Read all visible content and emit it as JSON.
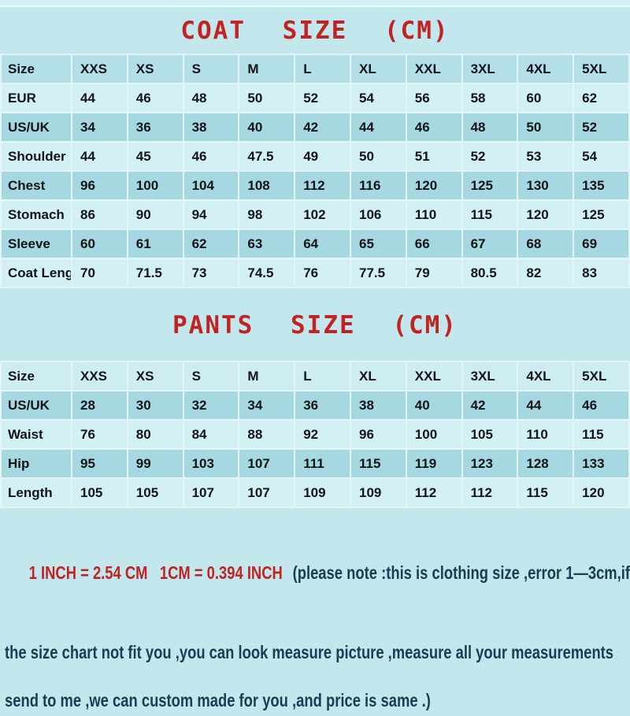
{
  "page": {
    "background_color": "#c2e7ed",
    "title_color": "#c32222",
    "note_color": "#1b3c52",
    "row_light_color": "#d3f0f4",
    "row_dark_color": "#a6d8e1"
  },
  "coat": {
    "title": "COAT SIZE (CM)",
    "columns": [
      "Size",
      "XXS",
      "XS",
      "S",
      "M",
      "L",
      "XL",
      "XXL",
      "3XL",
      "4XL",
      "5XL"
    ],
    "rows": [
      {
        "label": "EUR",
        "values": [
          "44",
          "46",
          "48",
          "50",
          "52",
          "54",
          "56",
          "58",
          "60",
          "62"
        ]
      },
      {
        "label": "US/UK",
        "values": [
          "34",
          "36",
          "38",
          "40",
          "42",
          "44",
          "46",
          "48",
          "50",
          "52"
        ]
      },
      {
        "label": "Shoulder",
        "values": [
          "44",
          "45",
          "46",
          "47.5",
          "49",
          "50",
          "51",
          "52",
          "53",
          "54"
        ]
      },
      {
        "label": "Chest",
        "values": [
          "96",
          "100",
          "104",
          "108",
          "112",
          "116",
          "120",
          "125",
          "130",
          "135"
        ]
      },
      {
        "label": "Stomach",
        "values": [
          "86",
          "90",
          "94",
          "98",
          "102",
          "106",
          "110",
          "115",
          "120",
          "125"
        ]
      },
      {
        "label": "Sleeve",
        "values": [
          "60",
          "61",
          "62",
          "63",
          "64",
          "65",
          "66",
          "67",
          "68",
          "69"
        ]
      },
      {
        "label": "Coat Length",
        "values": [
          "70",
          "71.5",
          "73",
          "74.5",
          "76",
          "77.5",
          "79",
          "80.5",
          "82",
          "83"
        ]
      }
    ]
  },
  "pants": {
    "title": "PANTS SIZE (CM)",
    "columns": [
      "Size",
      "XXS",
      "XS",
      "S",
      "M",
      "L",
      "XL",
      "XXL",
      "3XL",
      "4XL",
      "5XL"
    ],
    "rows": [
      {
        "label": "US/UK",
        "values": [
          "28",
          "30",
          "32",
          "34",
          "36",
          "38",
          "40",
          "42",
          "44",
          "46"
        ]
      },
      {
        "label": "Waist",
        "values": [
          "76",
          "80",
          "84",
          "88",
          "92",
          "96",
          "100",
          "105",
          "110",
          "115"
        ]
      },
      {
        "label": "Hip",
        "values": [
          "95",
          "99",
          "103",
          "107",
          "111",
          "115",
          "119",
          "123",
          "128",
          "133"
        ]
      },
      {
        "label": "Length",
        "values": [
          "105",
          "105",
          "107",
          "107",
          "109",
          "109",
          "112",
          "112",
          "115",
          "120"
        ]
      }
    ]
  },
  "notes": {
    "conversion": "1 INCH = 2.54 CM   1CM = 0.394 INCH",
    "line1": "(please note :this is clothing size ,error 1—3cm,if",
    "line2": "the size chart not fit you ,you can look measure picture ,measure all your measurements",
    "line3": "send to me ,we can custom made for you ,and price is same .)"
  }
}
